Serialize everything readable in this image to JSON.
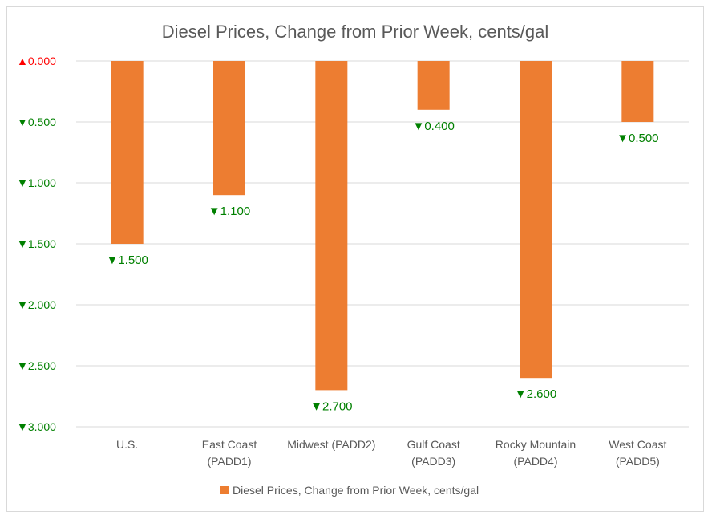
{
  "chart_data": {
    "type": "bar",
    "title": "Diesel Prices, Change from Prior Week, cents/gal",
    "categories": [
      [
        "U.S."
      ],
      [
        "East Coast",
        "(PADD1)"
      ],
      [
        "Midwest (PADD2)"
      ],
      [
        "Gulf Coast",
        "(PADD3)"
      ],
      [
        "Rocky Mountain",
        "(PADD4)"
      ],
      [
        "West Coast",
        "(PADD5)"
      ]
    ],
    "series": [
      {
        "name": "Diesel Prices, Change from Prior Week, cents/gal",
        "values": [
          -1.5,
          -1.1,
          -2.7,
          -0.4,
          -2.6,
          -0.5
        ],
        "labels": [
          "1.500",
          "1.100",
          "2.700",
          "0.400",
          "2.600",
          "0.500"
        ],
        "color": "#ED7D31"
      }
    ],
    "yticks": [
      0,
      -0.5,
      -1.0,
      -1.5,
      -2.0,
      -2.5,
      -3.0
    ],
    "ytick_labels": [
      "0.000",
      "0.500",
      "1.000",
      "1.500",
      "2.000",
      "2.500",
      "3.000"
    ],
    "ylim": [
      -3.0,
      0
    ],
    "grid": true,
    "legend_position": "bottom",
    "colors": {
      "up": "#ff0000",
      "down": "#008000",
      "grid": "#d9d9d9",
      "text": "#595959"
    }
  }
}
